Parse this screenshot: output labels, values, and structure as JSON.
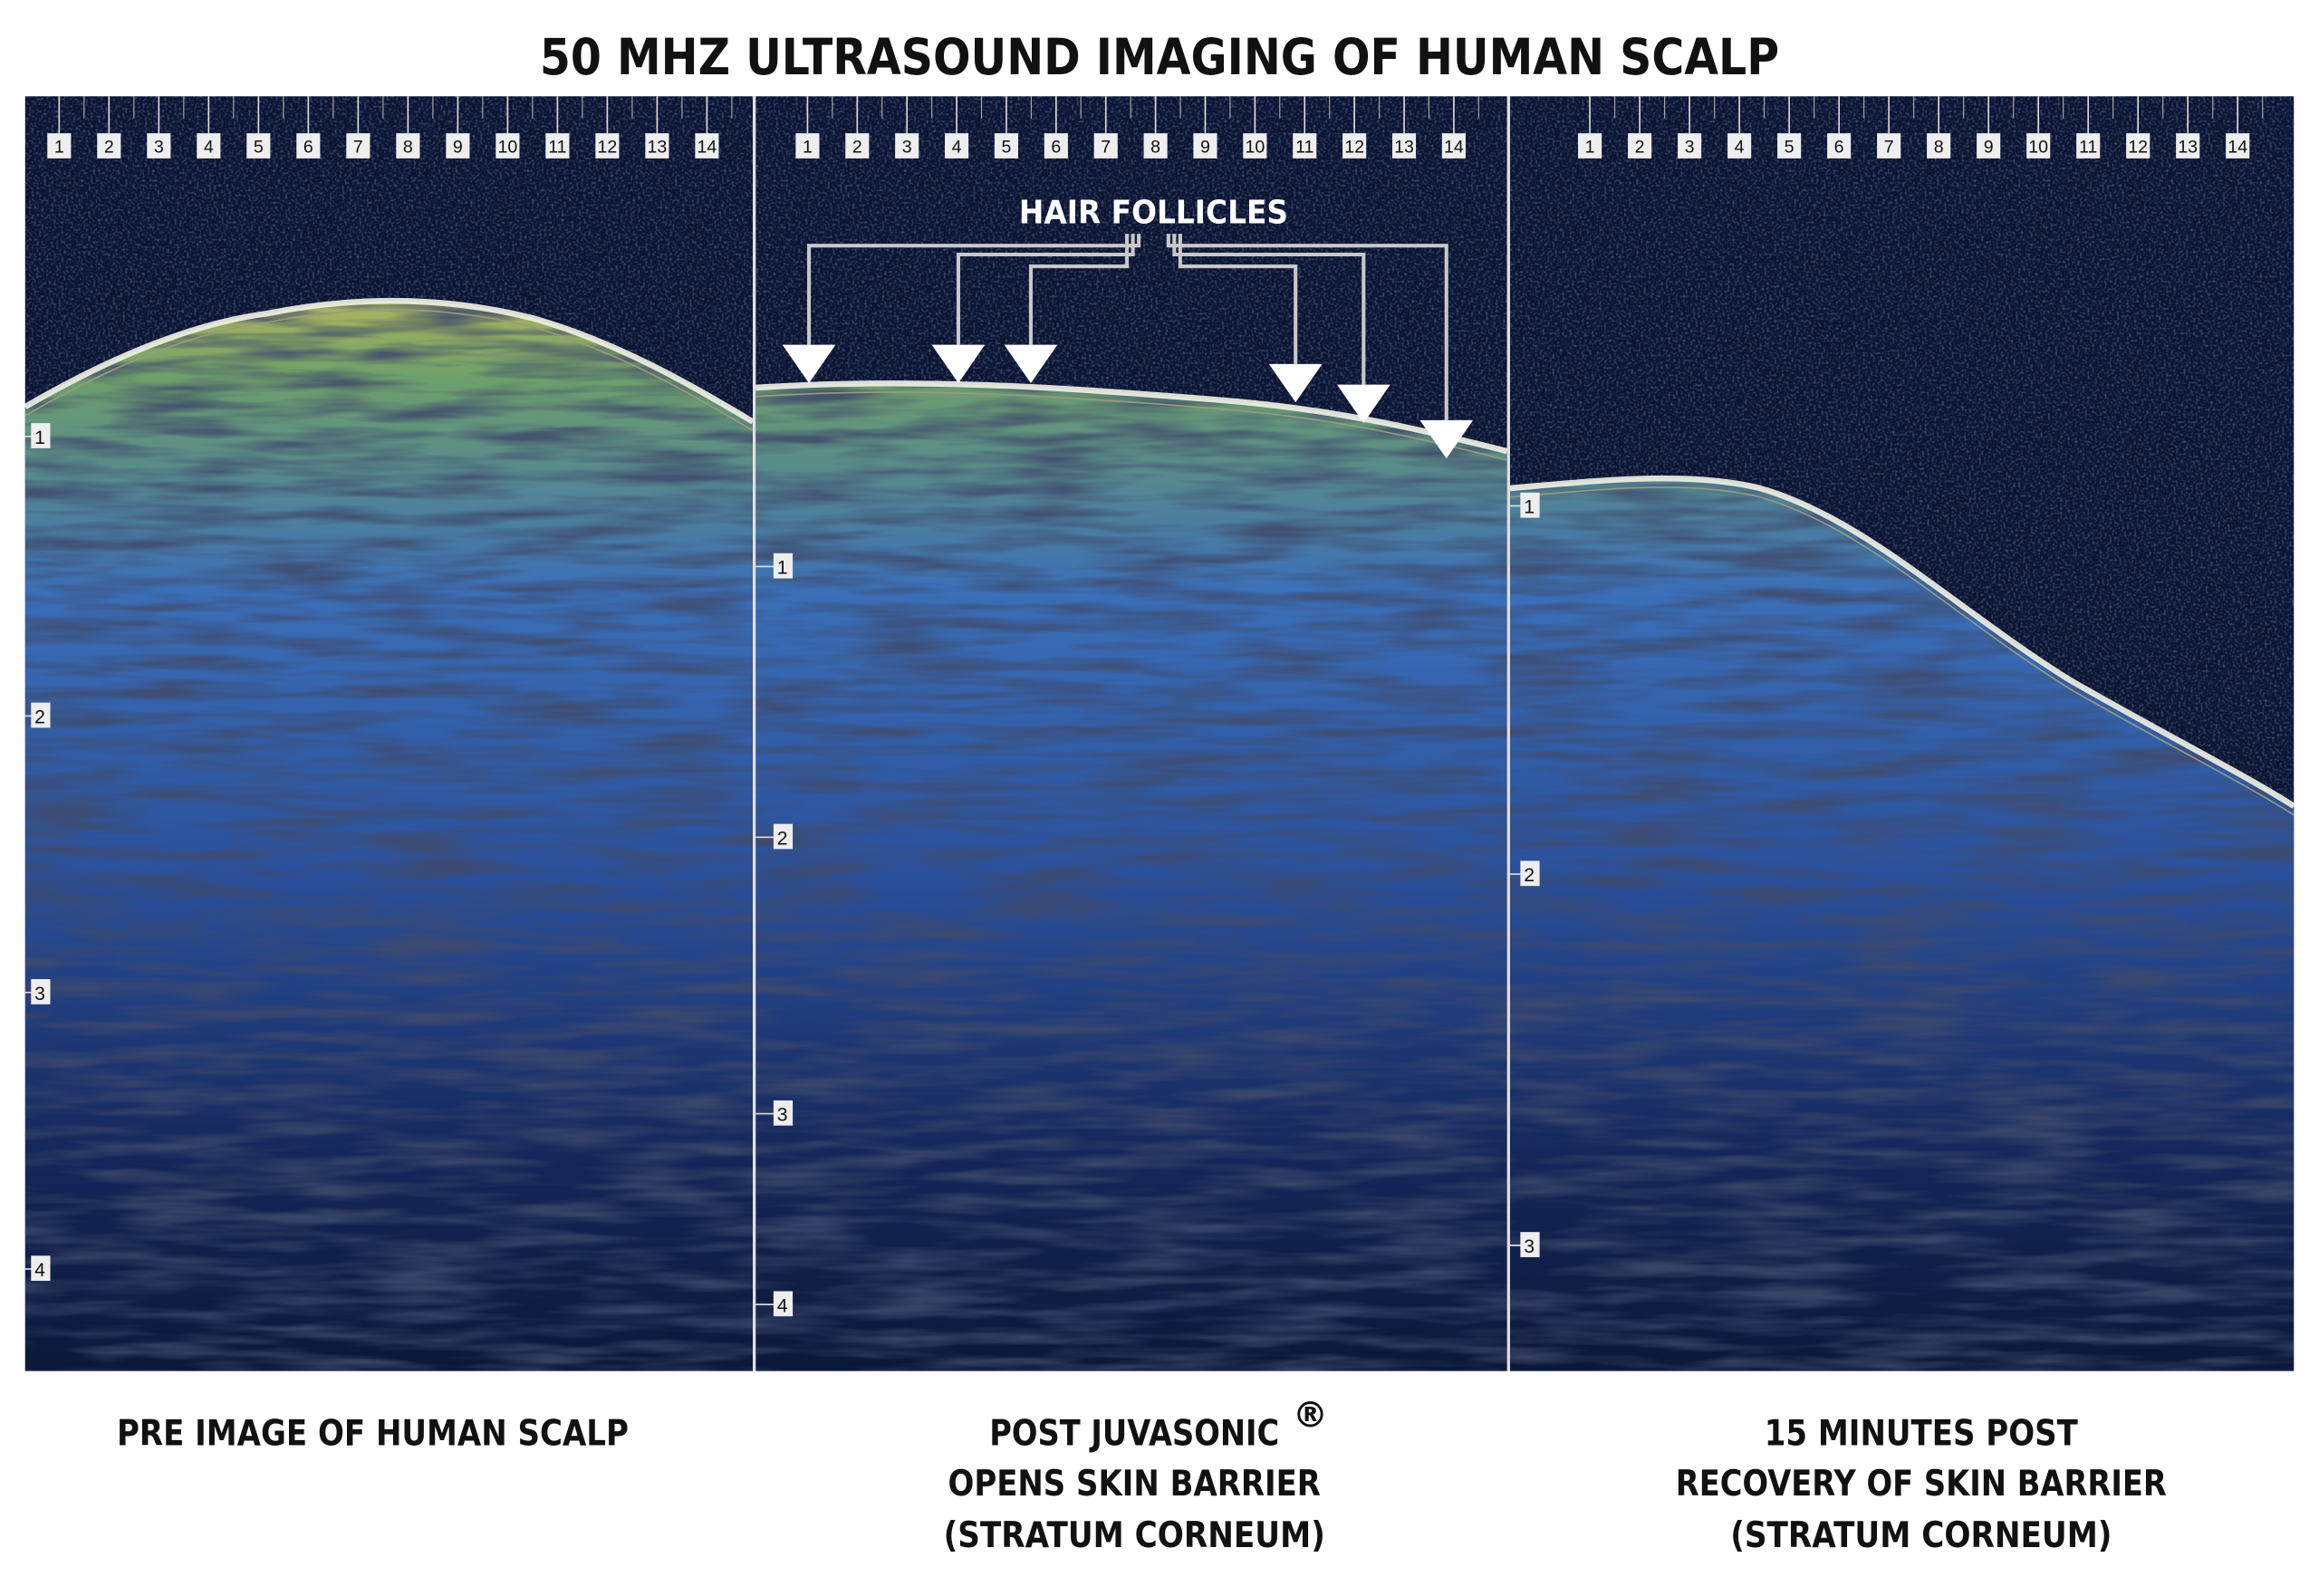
{
  "title": "50 MHZ ULTRASOUND IMAGING OF HUMAN SCALP",
  "panels": [
    {
      "ruler": [
        "1",
        "2",
        "3",
        "4",
        "5",
        "6",
        "7",
        "8",
        "9",
        "10",
        "11",
        "12",
        "13",
        "14"
      ],
      "depth_labels": [
        "1",
        "2",
        "3",
        "4"
      ],
      "caption": [
        "PRE IMAGE OF HUMAN SCALP"
      ]
    },
    {
      "ruler": [
        "1",
        "2",
        "3",
        "4",
        "5",
        "6",
        "7",
        "8",
        "9",
        "10",
        "11",
        "12",
        "13",
        "14"
      ],
      "depth_labels": [
        "1",
        "2",
        "3",
        "4"
      ],
      "annotation": "HAIR FOLLICLES",
      "caption": [
        "POST JUVASONIC",
        "OPENS SKIN BARRIER",
        "(STRATUM CORNEUM)"
      ],
      "caption_mark": "®"
    },
    {
      "ruler": [
        "1",
        "2",
        "3",
        "4",
        "5",
        "6",
        "7",
        "8",
        "9",
        "10",
        "11",
        "12",
        "13",
        "14"
      ],
      "depth_labels": [
        "1",
        "2",
        "3"
      ],
      "caption": [
        "15 MINUTES POST",
        "RECOVERY OF SKIN BARRIER",
        "(STRATUM CORNEUM)"
      ]
    }
  ]
}
